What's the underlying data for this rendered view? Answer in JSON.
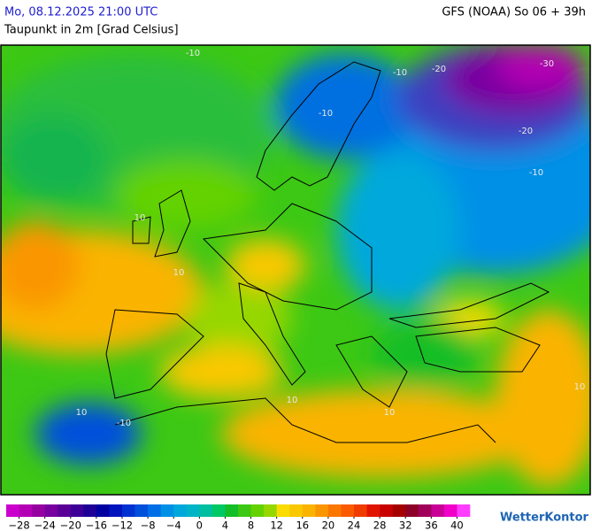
{
  "header": {
    "datetime": "Mo, 08.12.2025 21:00 UTC",
    "model": "GFS (NOAA) So 06 + 39h",
    "title": "Taupunkt in 2m [Grad Celsius]"
  },
  "map": {
    "contour_labels": [
      "-30",
      "-20",
      "-20",
      "-10",
      "-10",
      "-10",
      "-10",
      "-10",
      "10",
      "10",
      "10",
      "10",
      "10",
      "10"
    ]
  },
  "legend": {
    "bins": [
      -30,
      -28,
      -26,
      -24,
      -22,
      -20,
      -18,
      -16,
      -14,
      -12,
      -10,
      -8,
      -6,
      -4,
      -2,
      0,
      2,
      4,
      6,
      8,
      10,
      12,
      14,
      16,
      18,
      20,
      22,
      24,
      26,
      28,
      30,
      32,
      34,
      36,
      38,
      40,
      42
    ],
    "colors": [
      "#cc00cc",
      "#b400b4",
      "#9600a0",
      "#7800a0",
      "#5a0096",
      "#3c0096",
      "#1e0096",
      "#0000a0",
      "#0014be",
      "#0032d2",
      "#0050dc",
      "#006ee6",
      "#0090e6",
      "#00a8dc",
      "#00b4c8",
      "#00bea0",
      "#00c864",
      "#14be28",
      "#3cc814",
      "#64d200",
      "#96d700",
      "#fadc00",
      "#fac800",
      "#fab400",
      "#fa9600",
      "#fa7800",
      "#fa5a00",
      "#f03c00",
      "#e11400",
      "#c80000",
      "#a50000",
      "#8c0028",
      "#a0005a",
      "#c80096",
      "#f000c8",
      "#ff3cff"
    ],
    "ticks": [
      {
        "value": -28,
        "label": "−28"
      },
      {
        "value": -24,
        "label": "−24"
      },
      {
        "value": -20,
        "label": "−20"
      },
      {
        "value": -16,
        "label": "−16"
      },
      {
        "value": -12,
        "label": "−12"
      },
      {
        "value": -8,
        "label": "−8"
      },
      {
        "value": -4,
        "label": "−4"
      },
      0,
      4,
      8,
      12,
      16,
      20,
      24,
      28,
      32,
      36,
      40
    ]
  },
  "logo": "WetterKontor"
}
